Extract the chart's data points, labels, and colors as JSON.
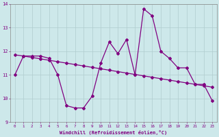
{
  "x": [
    0,
    1,
    2,
    3,
    4,
    5,
    6,
    7,
    8,
    9,
    10,
    11,
    12,
    13,
    14,
    15,
    16,
    17,
    18,
    19,
    20,
    21,
    22,
    23
  ],
  "windchill": [
    11.0,
    11.8,
    11.8,
    11.8,
    11.7,
    11.0,
    9.7,
    9.6,
    9.6,
    10.1,
    11.5,
    12.4,
    11.9,
    12.5,
    11.0,
    13.8,
    13.5,
    12.0,
    11.7,
    11.3,
    11.3,
    10.6,
    10.6,
    9.9
  ],
  "trend_x": [
    0,
    1,
    2,
    3,
    4,
    5,
    6,
    7,
    8,
    9,
    10,
    11,
    12,
    13,
    14,
    15,
    16,
    17,
    18,
    19,
    20,
    21,
    22,
    23
  ],
  "trend_y": [
    11.85,
    11.8,
    11.74,
    11.68,
    11.62,
    11.56,
    11.5,
    11.44,
    11.38,
    11.32,
    11.26,
    11.2,
    11.14,
    11.08,
    11.02,
    10.96,
    10.9,
    10.84,
    10.78,
    10.72,
    10.66,
    10.6,
    10.54,
    10.48
  ],
  "line_color": "#800080",
  "bg_color": "#cde8ea",
  "grid_color": "#b0ccce",
  "xlabel": "Windchill (Refroidissement éolien,°C)",
  "ylim": [
    9,
    14
  ],
  "xlim": [
    -0.5,
    23.5
  ],
  "yticks": [
    9,
    10,
    11,
    12,
    13,
    14
  ],
  "xticks": [
    0,
    1,
    2,
    3,
    4,
    5,
    6,
    7,
    8,
    9,
    10,
    11,
    12,
    13,
    14,
    15,
    16,
    17,
    18,
    19,
    20,
    21,
    22,
    23
  ]
}
